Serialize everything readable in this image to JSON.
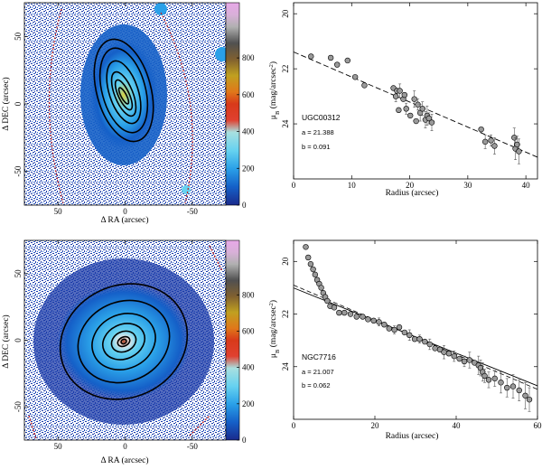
{
  "colors": {
    "background": "#ffffff",
    "axis": "#000000",
    "marker_fill": "#9a9a9a",
    "contour": "#000000",
    "colorbar_stops": [
      "#1a2a8c",
      "#1560c8",
      "#2aa0e8",
      "#66d2f0",
      "#d8d040",
      "#e07818",
      "#d02a1c",
      "#808080",
      "#c8c8c8",
      "#e0a0e0"
    ]
  },
  "chart_data": [
    {
      "type": "image",
      "object": "UGC00312",
      "xlabel": "Δ RA (arcsec)",
      "ylabel": "Δ DEC (arcsec)",
      "xlim": [
        75,
        -75
      ],
      "ylim": [
        -75,
        75
      ],
      "xticks": [
        50,
        0,
        -50
      ],
      "yticks": [
        -50,
        0,
        50
      ],
      "colorbar": {
        "range": [
          0,
          1100
        ],
        "ticks": [
          0,
          200,
          400,
          600,
          800
        ]
      }
    },
    {
      "type": "scatter",
      "object": "UGC00312",
      "xlabel": "Radius (arcsec)",
      "ylabel": "μ_B (mag/arcsec²)",
      "xlim": [
        0,
        42
      ],
      "ylim": [
        26,
        19.6
      ],
      "xticks": [
        0,
        10,
        20,
        30,
        40
      ],
      "yticks": [
        20,
        22,
        24
      ],
      "x": [
        3,
        6.4,
        7.5,
        9.3,
        10.6,
        12.2,
        17.2,
        17.6,
        17.8,
        18.1,
        18.3,
        18.9,
        19.1,
        19.4,
        20.1,
        20.8,
        21.1,
        21.4,
        21.8,
        22.2,
        22.7,
        23.0,
        23.3,
        23.8,
        32.3,
        33.0,
        34.0,
        34.6,
        38.0,
        38.2,
        38.5,
        38.8
      ],
      "y": [
        21.55,
        21.6,
        21.85,
        21.7,
        22.3,
        22.6,
        22.7,
        23.0,
        22.8,
        23.5,
        22.8,
        23.1,
        22.95,
        23.45,
        23.7,
        23.1,
        23.9,
        23.3,
        23.6,
        23.45,
        23.85,
        23.7,
        23.8,
        23.95,
        24.2,
        24.65,
        24.6,
        24.8,
        24.5,
        24.9,
        24.75,
        25.0
      ],
      "errors": [
        0,
        0,
        0,
        0,
        0,
        0,
        0,
        0.2,
        0,
        0,
        0.25,
        0,
        0,
        0.2,
        0,
        0.3,
        0,
        0.2,
        0.3,
        0.25,
        0.3,
        0.35,
        0.2,
        0.3,
        0,
        0.25,
        0.2,
        0.3,
        0.35,
        0.4,
        0.3,
        0.45
      ],
      "fit": {
        "a": 21.388,
        "b": 0.091
      },
      "annotations": [
        "UGC00312",
        "a = 21.388",
        "b = 0.091"
      ]
    },
    {
      "type": "image",
      "object": "NGC7716",
      "xlabel": "Δ RA (arcsec)",
      "ylabel": "Δ DEC (arcsec)",
      "xlim": [
        75,
        -75
      ],
      "ylim": [
        -75,
        75
      ],
      "xticks": [
        50,
        0,
        -50
      ],
      "yticks": [
        -50,
        0,
        50
      ],
      "colorbar": {
        "range": [
          0,
          1100
        ],
        "ticks": [
          0,
          200,
          400,
          600,
          800
        ]
      }
    },
    {
      "type": "scatter",
      "object": "NGC7716",
      "xlabel": "Radius (arcsec)",
      "ylabel": "μ_B (mag/arcsec²)",
      "xlim": [
        0,
        60
      ],
      "ylim": [
        26,
        19.2
      ],
      "xticks": [
        0,
        20,
        40,
        60
      ],
      "yticks": [
        20,
        22,
        24
      ],
      "x": [
        3,
        3.6,
        4.2,
        4.8,
        5.3,
        5.8,
        6.3,
        6.8,
        7.3,
        7.8,
        8.3,
        9.0,
        10.0,
        11.2,
        12.5,
        14.0,
        15.5,
        17.0,
        18.3,
        19.7,
        21.0,
        22.3,
        23.5,
        24.8,
        26.0,
        27.3,
        28.5,
        29.8,
        31.0,
        32.3,
        33.5,
        34.8,
        36.0,
        37.0,
        38.2,
        39.5,
        40.8,
        42.0,
        43.3,
        44.5,
        45.5,
        46.0,
        46.5,
        47.0,
        48.0,
        49.5,
        51.0,
        52.5,
        54.0,
        55.5,
        57.0,
        58.0
      ],
      "y": [
        19.45,
        19.85,
        20.1,
        20.3,
        20.5,
        20.7,
        20.85,
        21.0,
        21.2,
        21.35,
        21.5,
        21.7,
        21.75,
        21.95,
        21.95,
        22.0,
        22.1,
        22.1,
        22.2,
        22.25,
        22.3,
        22.4,
        22.55,
        22.6,
        22.5,
        22.7,
        22.8,
        22.95,
        22.95,
        23.05,
        23.15,
        23.3,
        23.35,
        23.45,
        23.5,
        23.6,
        23.7,
        23.8,
        23.75,
        23.85,
        23.95,
        24.05,
        24.2,
        24.35,
        24.5,
        24.45,
        24.6,
        24.8,
        24.75,
        24.9,
        25.1,
        25.25
      ],
      "errors": [
        0,
        0,
        0,
        0,
        0,
        0,
        0,
        0,
        0,
        0,
        0,
        0,
        0,
        0,
        0,
        0,
        0,
        0,
        0,
        0,
        0.15,
        0,
        0,
        0.15,
        0,
        0,
        0.2,
        0,
        0.15,
        0,
        0.2,
        0,
        0,
        0.25,
        0,
        0.2,
        0,
        0.2,
        0.3,
        0,
        0.35,
        0.3,
        0.35,
        0.25,
        0.3,
        0.3,
        0.4,
        0.35,
        0.45,
        0.4,
        0.5,
        0.45
      ],
      "fit": {
        "a": 21.007,
        "b": 0.062
      },
      "fit2": {
        "a": 20.9,
        "b": 0.066
      },
      "annotations": [
        "NGC7716",
        "a = 21.007",
        "b = 0.062"
      ]
    }
  ]
}
